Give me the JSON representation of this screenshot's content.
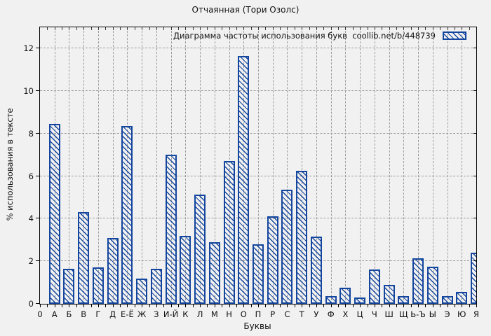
{
  "title": "Отчаянная (Тори Озолс)",
  "legend": {
    "label": "Диаграмма частоты использования букв  coollib.net/b/448739",
    "swatch": "hatched-bar-swatch"
  },
  "colors": {
    "bar": "#14469e",
    "grid": "#9c9c9c",
    "background": "#f1f1f1",
    "axis": "#000000"
  },
  "chart_data": {
    "type": "bar",
    "title": "Отчаянная (Тори Озолс)",
    "xlabel": "Буквы",
    "ylabel": "% использования в тексте",
    "origin_tick_label": "0",
    "yticks": [
      0,
      2,
      4,
      6,
      8,
      10,
      12
    ],
    "ylim": [
      0,
      13
    ],
    "grid": true,
    "legend_position": "top-right-inside",
    "bar_style": "diagonal-hatch",
    "categories": [
      "А",
      "Б",
      "В",
      "Г",
      "Д",
      "Е-Ё",
      "Ж",
      "З",
      "И-Й",
      "К",
      "Л",
      "М",
      "Н",
      "О",
      "П",
      "Р",
      "С",
      "Т",
      "У",
      "Ф",
      "Х",
      "Ц",
      "Ч",
      "Ш",
      "Щ",
      "Ь-Ъ",
      "Ы",
      "Э",
      "Ю",
      "Я"
    ],
    "values": [
      8.45,
      1.65,
      4.3,
      1.7,
      3.1,
      8.35,
      1.2,
      1.65,
      7.0,
      3.2,
      5.15,
      2.9,
      6.7,
      11.65,
      2.8,
      4.1,
      5.35,
      6.25,
      3.15,
      0.35,
      0.75,
      0.3,
      1.6,
      0.9,
      0.35,
      2.15,
      1.75,
      0.35,
      0.55,
      2.4
    ]
  }
}
